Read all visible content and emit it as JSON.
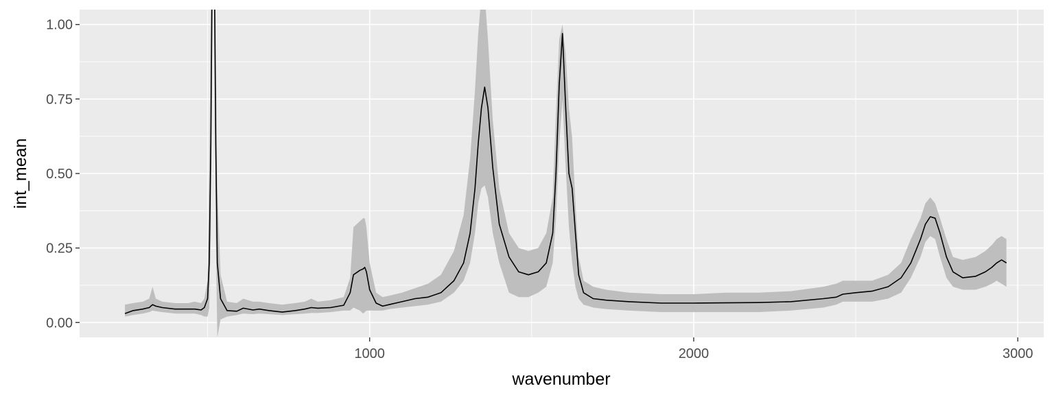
{
  "chart_data": {
    "type": "line",
    "title": "",
    "xlabel": "wavenumber",
    "ylabel": "int_mean",
    "xlim": [
      105,
      3080
    ],
    "ylim": [
      -0.05,
      1.05
    ],
    "x_ticks": [
      {
        "value": 1000,
        "label": "1000"
      },
      {
        "value": 2000,
        "label": "2000"
      },
      {
        "value": 3000,
        "label": "3000"
      }
    ],
    "y_ticks": [
      {
        "value": 0,
        "label": "0.00"
      },
      {
        "value": 0.25,
        "label": "0.25"
      },
      {
        "value": 0.5,
        "label": "0.50"
      },
      {
        "value": 0.75,
        "label": "0.75"
      },
      {
        "value": 1,
        "label": "1.00"
      }
    ],
    "grid": true,
    "legend": "none",
    "colors": {
      "panel": "#ebebeb",
      "grid": "#ffffff",
      "ribbon": "#bebebe",
      "line": "#000000"
    },
    "series": [
      {
        "x": [
          245,
          270,
          300,
          320,
          330,
          340,
          360,
          400,
          440,
          460,
          480,
          490,
          500,
          505,
          510,
          515,
          520,
          525,
          530,
          540,
          560,
          590,
          610,
          640,
          660,
          690,
          730,
          770,
          800,
          820,
          840,
          880,
          920,
          940,
          950,
          970,
          980,
          985,
          990,
          1000,
          1020,
          1040,
          1060,
          1100,
          1140,
          1180,
          1220,
          1260,
          1290,
          1310,
          1325,
          1335,
          1345,
          1355,
          1365,
          1380,
          1400,
          1430,
          1460,
          1490,
          1520,
          1545,
          1565,
          1575,
          1585,
          1595,
          1605,
          1615,
          1625,
          1635,
          1645,
          1660,
          1690,
          1730,
          1800,
          1900,
          2000,
          2100,
          2200,
          2300,
          2400,
          2440,
          2460,
          2500,
          2550,
          2600,
          2640,
          2670,
          2700,
          2715,
          2730,
          2745,
          2760,
          2780,
          2800,
          2830,
          2870,
          2900,
          2920,
          2935,
          2950,
          2965
        ],
        "mean": [
          0.03,
          0.04,
          0.045,
          0.05,
          0.06,
          0.055,
          0.05,
          0.045,
          0.045,
          0.045,
          0.042,
          0.05,
          0.08,
          0.2,
          0.6,
          1.3,
          1.3,
          0.6,
          0.2,
          0.08,
          0.04,
          0.038,
          0.048,
          0.042,
          0.045,
          0.04,
          0.035,
          0.04,
          0.045,
          0.05,
          0.048,
          0.05,
          0.058,
          0.1,
          0.16,
          0.175,
          0.18,
          0.185,
          0.17,
          0.11,
          0.065,
          0.055,
          0.06,
          0.07,
          0.08,
          0.085,
          0.1,
          0.14,
          0.2,
          0.3,
          0.45,
          0.6,
          0.72,
          0.79,
          0.72,
          0.52,
          0.33,
          0.22,
          0.17,
          0.16,
          0.17,
          0.2,
          0.3,
          0.5,
          0.8,
          0.97,
          0.72,
          0.5,
          0.45,
          0.3,
          0.16,
          0.1,
          0.08,
          0.075,
          0.07,
          0.065,
          0.065,
          0.066,
          0.067,
          0.07,
          0.08,
          0.085,
          0.095,
          0.1,
          0.105,
          0.12,
          0.15,
          0.2,
          0.28,
          0.33,
          0.355,
          0.35,
          0.3,
          0.22,
          0.17,
          0.15,
          0.155,
          0.17,
          0.185,
          0.2,
          0.21,
          0.2
        ],
        "lower": [
          0.02,
          0.025,
          0.03,
          0.035,
          0.04,
          0.038,
          0.035,
          0.03,
          0.03,
          0.03,
          0.025,
          0.02,
          0.02,
          0.05,
          0.3,
          1.3,
          1.3,
          0.3,
          -0.05,
          0.01,
          0.02,
          0.025,
          0.03,
          0.028,
          0.03,
          0.028,
          0.025,
          0.028,
          0.03,
          0.032,
          0.032,
          0.035,
          0.04,
          0.04,
          0.05,
          0.04,
          0.03,
          0.035,
          0.04,
          0.04,
          0.04,
          0.04,
          0.045,
          0.05,
          0.055,
          0.06,
          0.07,
          0.1,
          0.14,
          0.2,
          0.3,
          0.4,
          0.45,
          0.46,
          0.42,
          0.3,
          0.2,
          0.1,
          0.085,
          0.085,
          0.1,
          0.12,
          0.2,
          0.35,
          0.6,
          0.75,
          0.52,
          0.32,
          0.2,
          0.12,
          0.08,
          0.06,
          0.05,
          0.045,
          0.04,
          0.035,
          0.035,
          0.035,
          0.035,
          0.04,
          0.05,
          0.06,
          0.07,
          0.07,
          0.07,
          0.08,
          0.1,
          0.15,
          0.22,
          0.27,
          0.29,
          0.28,
          0.22,
          0.15,
          0.12,
          0.11,
          0.11,
          0.12,
          0.13,
          0.14,
          0.13,
          0.12
        ],
        "upper": [
          0.06,
          0.065,
          0.07,
          0.08,
          0.12,
          0.08,
          0.07,
          0.065,
          0.065,
          0.07,
          0.065,
          0.08,
          0.14,
          0.5,
          1.1,
          1.3,
          1.3,
          1.0,
          0.45,
          0.16,
          0.07,
          0.065,
          0.08,
          0.07,
          0.07,
          0.065,
          0.06,
          0.065,
          0.07,
          0.08,
          0.07,
          0.075,
          0.085,
          0.15,
          0.32,
          0.34,
          0.35,
          0.35,
          0.32,
          0.2,
          0.1,
          0.085,
          0.09,
          0.1,
          0.115,
          0.13,
          0.16,
          0.24,
          0.36,
          0.55,
          0.78,
          0.97,
          1.1,
          1.1,
          0.95,
          0.68,
          0.45,
          0.3,
          0.25,
          0.24,
          0.25,
          0.3,
          0.42,
          0.7,
          0.95,
          1.0,
          0.9,
          0.72,
          0.62,
          0.4,
          0.22,
          0.14,
          0.12,
          0.11,
          0.1,
          0.095,
          0.095,
          0.1,
          0.1,
          0.105,
          0.12,
          0.13,
          0.14,
          0.14,
          0.14,
          0.16,
          0.2,
          0.28,
          0.35,
          0.4,
          0.42,
          0.4,
          0.35,
          0.28,
          0.22,
          0.21,
          0.22,
          0.24,
          0.26,
          0.28,
          0.29,
          0.28
        ]
      }
    ]
  }
}
